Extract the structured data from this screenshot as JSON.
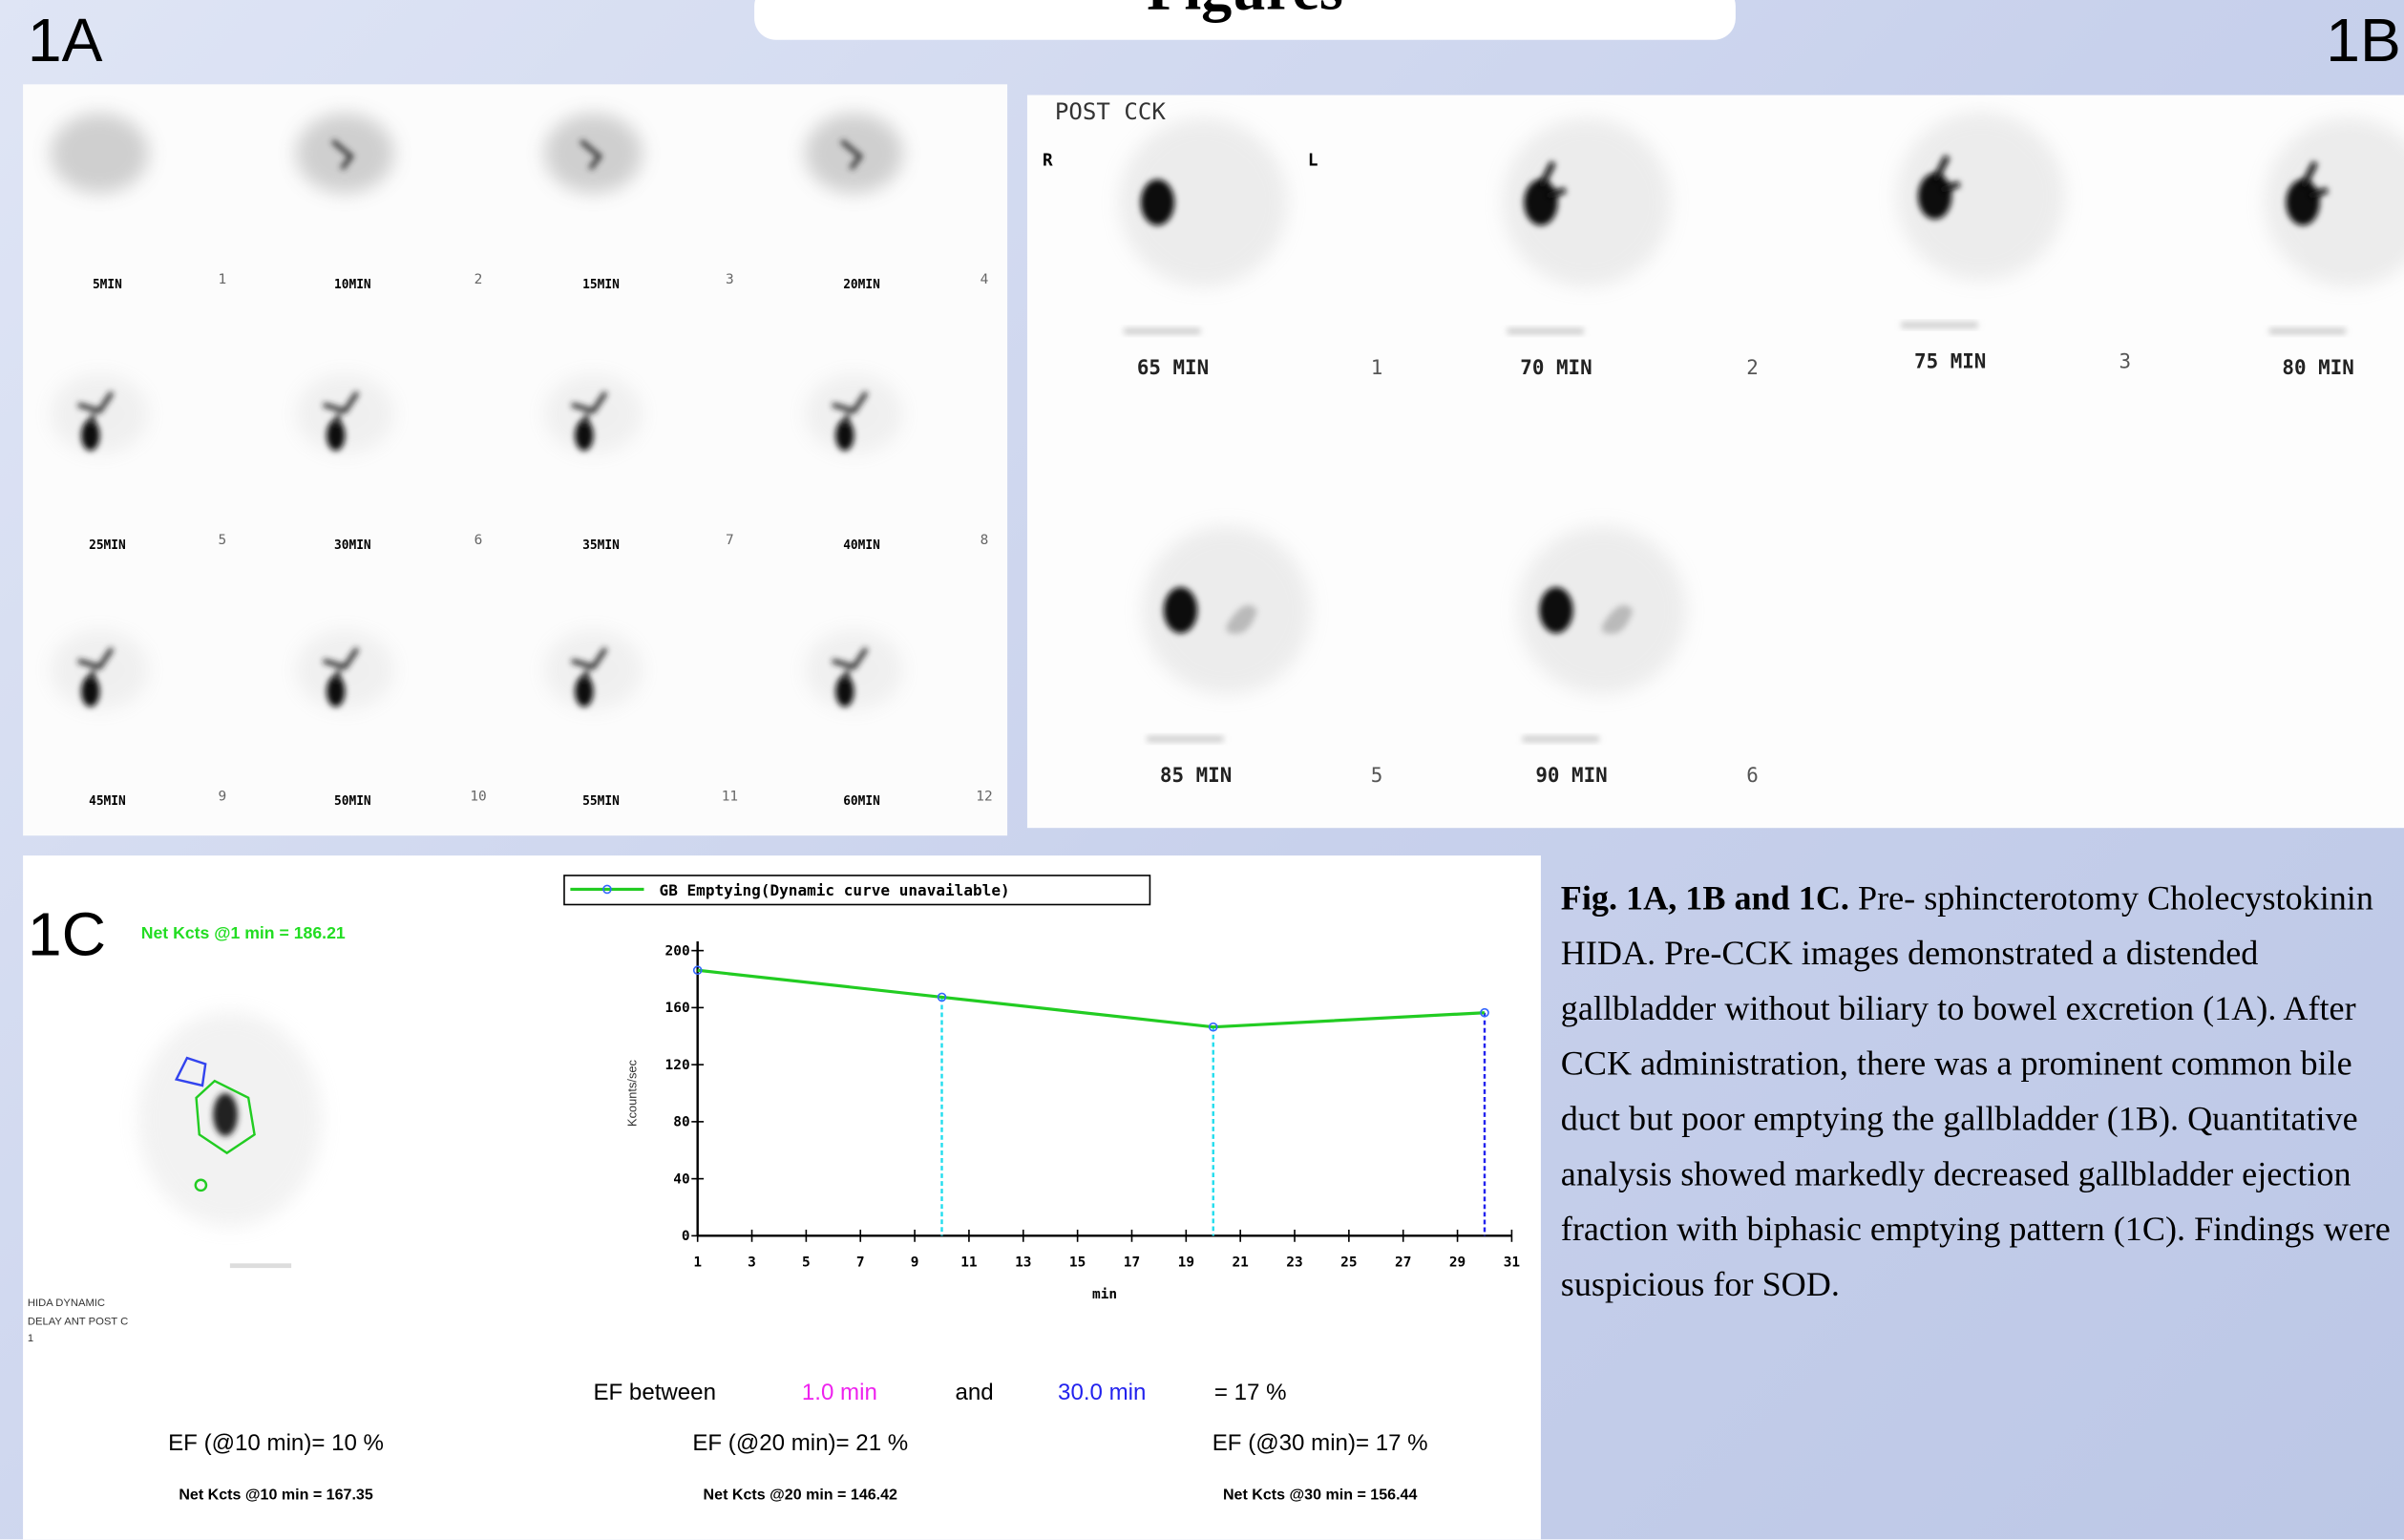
{
  "header": {
    "title": "Figures"
  },
  "panel_1a": {
    "label": "1A",
    "frames": [
      {
        "time": "5MIN",
        "index": "1"
      },
      {
        "time": "10MIN",
        "index": "2"
      },
      {
        "time": "15MIN",
        "index": "3"
      },
      {
        "time": "20MIN",
        "index": "4"
      },
      {
        "time": "25MIN",
        "index": "5"
      },
      {
        "time": "30MIN",
        "index": "6"
      },
      {
        "time": "35MIN",
        "index": "7"
      },
      {
        "time": "40MIN",
        "index": "8"
      },
      {
        "time": "45MIN",
        "index": "9"
      },
      {
        "time": "50MIN",
        "index": "10"
      },
      {
        "time": "55MIN",
        "index": "11"
      },
      {
        "time": "60MIN",
        "index": "12"
      }
    ]
  },
  "panel_1b": {
    "label": "1B",
    "heading": "POST CCK",
    "right": "R",
    "left": "L",
    "frames": [
      {
        "time": "65 MIN",
        "index": "1"
      },
      {
        "time": "70 MIN",
        "index": "2"
      },
      {
        "time": "75 MIN",
        "index": "3"
      },
      {
        "time": "80 MIN"
      },
      {
        "time": "85 MIN",
        "index": "5"
      },
      {
        "time": "90 MIN",
        "index": "6"
      }
    ]
  },
  "panel_1c": {
    "label": "1C",
    "roi_label": "Net Kcts @1 min = 186.21",
    "study": "HIDA DYNAMIC",
    "view": "DELAY ANT POST C",
    "frame_no": "1",
    "ef_between": "EF between",
    "start": "1.0 min",
    "and": "and",
    "end": "30.0 min",
    "ef_total": "= 17 %",
    "ef": [
      {
        "ef": "EF (@10 min)= 10 %",
        "net": "Net Kcts @10 min = 167.35"
      },
      {
        "ef": "EF (@20 min)= 21 %",
        "net": "Net Kcts @20 min = 146.42"
      },
      {
        "ef": "EF (@30 min)= 17 %",
        "net": "Net Kcts @30 min = 156.44"
      }
    ]
  },
  "chart_data": {
    "type": "line",
    "y_label": "Kcounts/sec",
    "x_label": "min",
    "x": [
      1,
      10,
      20,
      30
    ],
    "series": [
      {
        "name": "GB Emptying(Dynamic curve unavailable)",
        "color": "#22cc22",
        "values": [
          186.21,
          167.35,
          146.42,
          156.44
        ]
      }
    ],
    "xlim": [
      1,
      31
    ],
    "xticks": [
      1,
      3,
      5,
      7,
      9,
      11,
      13,
      15,
      17,
      19,
      21,
      23,
      25,
      27,
      29,
      31
    ],
    "ylim": [
      0,
      200
    ],
    "yticks": [
      0,
      40,
      80,
      120,
      160,
      200
    ]
  },
  "caption": {
    "lead": "Fig. 1A, 1B and 1C.",
    "text": "Pre- sphincterotomy Cholecystokinin HIDA. Pre-CCK images demonstrated a distended gallbladder without biliary to bowel excretion (1A). After CCK administration, there was a prominent common bile duct but poor emptying the gallbladder (1B). Quantitative analysis showed markedly decreased gallbladder ejection fraction with biphasic emptying pattern (1C). Findings were suspicious for SOD."
  }
}
